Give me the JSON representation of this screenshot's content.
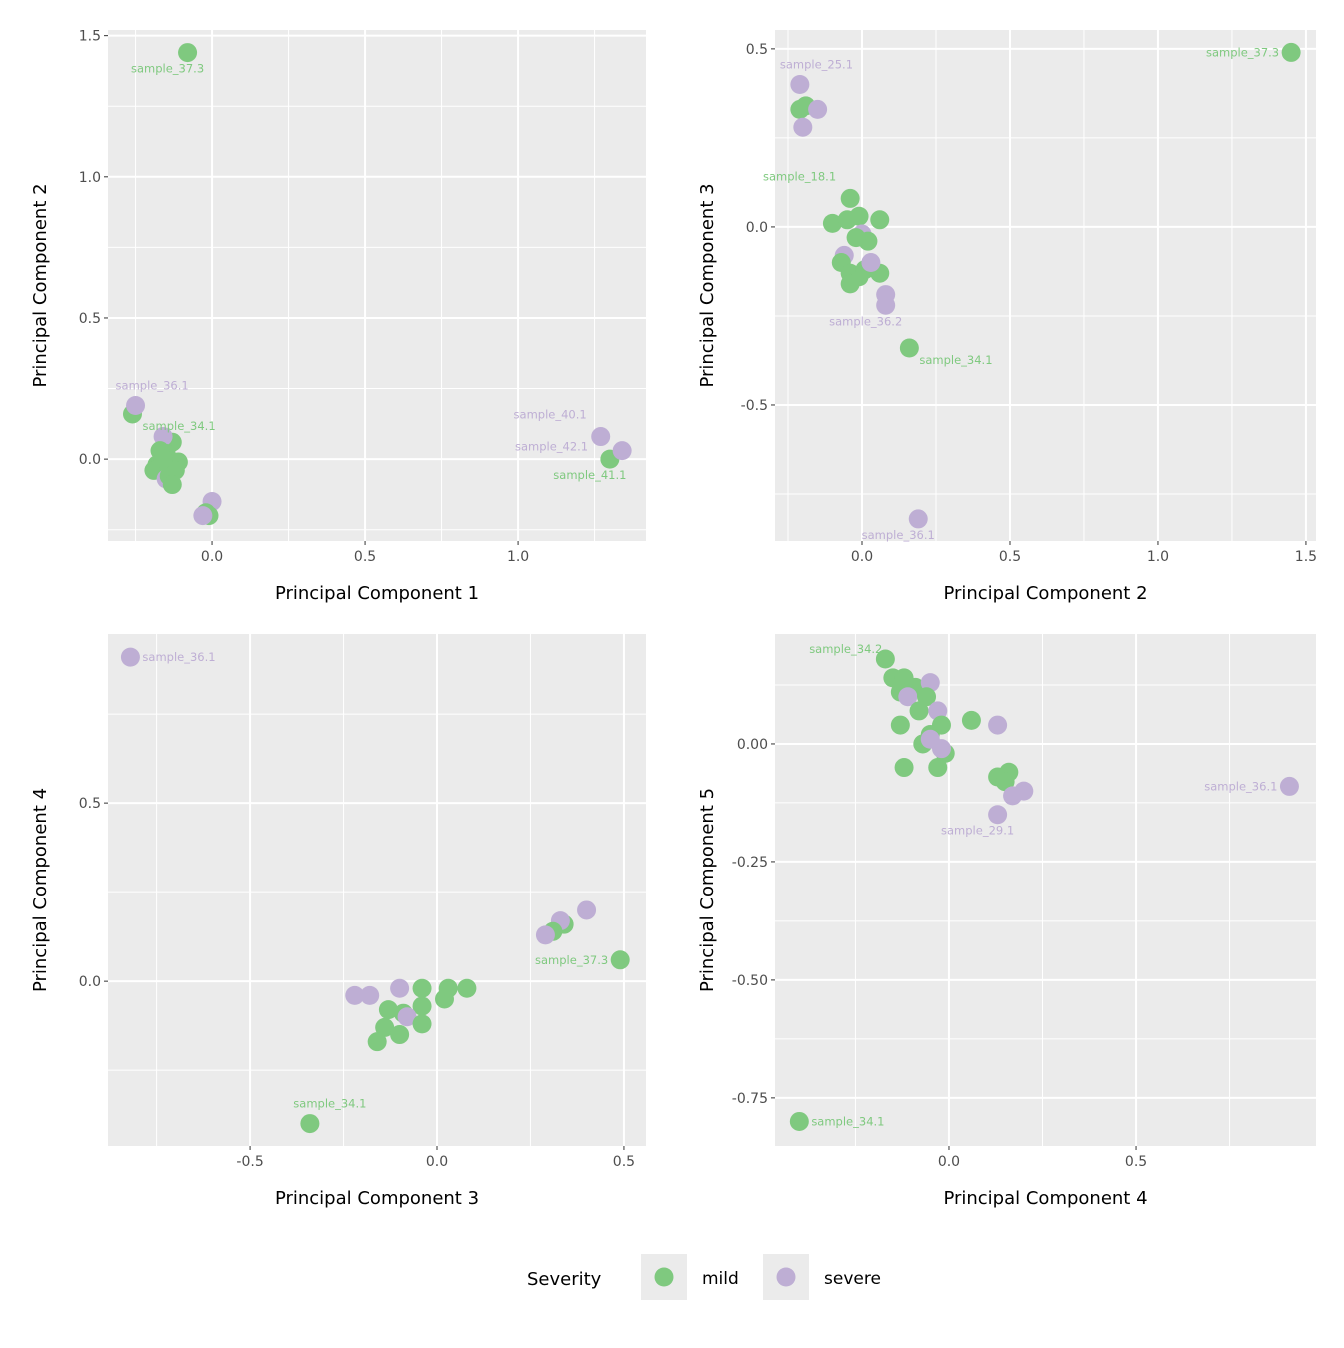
{
  "colors": {
    "mild": "#7FC97F",
    "severe": "#BEAED4",
    "panel_bg": "#EBEBEB",
    "grid": "#FFFFFF"
  },
  "legend": {
    "title": "Severity",
    "items": [
      {
        "key": "mild",
        "label": "mild"
      },
      {
        "key": "severe",
        "label": "severe"
      }
    ],
    "placement": "bottom"
  },
  "chart_data": [
    {
      "type": "scatter",
      "xlabel": "Principal Component 1",
      "ylabel": "Principal Component 2",
      "xlim": [
        -0.34,
        1.418
      ],
      "ylim": [
        -0.29,
        1.52
      ],
      "xticks": [
        {
          "v": 0,
          "t": "0.0"
        },
        {
          "v": 0.5,
          "t": "0.5"
        },
        {
          "v": 1.0,
          "t": "1.0"
        }
      ],
      "yticks": [
        {
          "v": 0,
          "t": "0.0"
        },
        {
          "v": 0.5,
          "t": "0.5"
        },
        {
          "v": 1.0,
          "t": "1.0"
        },
        {
          "v": 1.5,
          "t": "1.5"
        }
      ],
      "points": [
        {
          "x": -0.08,
          "y": 1.44,
          "s": "mild",
          "label": "sample_37.3",
          "pos": "below-left"
        },
        {
          "x": -0.26,
          "y": 0.16,
          "s": "mild",
          "label": "sample_34.1",
          "pos": "below-right"
        },
        {
          "x": -0.25,
          "y": 0.19,
          "s": "severe",
          "label": "sample_36.1",
          "pos": "above-right"
        },
        {
          "x": 1.3,
          "y": 0.0,
          "s": "mild",
          "label": "sample_41.1",
          "pos": "below-left"
        },
        {
          "x": 1.27,
          "y": 0.08,
          "s": "severe",
          "label": "sample_40.1",
          "pos": "above-left"
        },
        {
          "x": 1.34,
          "y": 0.03,
          "s": "severe",
          "label": "sample_42.1",
          "pos": "far-left"
        },
        {
          "x": -0.13,
          "y": 0.06,
          "s": "mild"
        },
        {
          "x": -0.16,
          "y": 0.08,
          "s": "severe"
        },
        {
          "x": -0.15,
          "y": 0.02,
          "s": "mild"
        },
        {
          "x": -0.17,
          "y": 0.03,
          "s": "mild"
        },
        {
          "x": -0.18,
          "y": -0.02,
          "s": "mild"
        },
        {
          "x": -0.19,
          "y": -0.04,
          "s": "mild"
        },
        {
          "x": -0.13,
          "y": -0.02,
          "s": "mild"
        },
        {
          "x": -0.11,
          "y": -0.01,
          "s": "mild"
        },
        {
          "x": -0.15,
          "y": -0.07,
          "s": "severe"
        },
        {
          "x": -0.12,
          "y": -0.04,
          "s": "mild"
        },
        {
          "x": -0.14,
          "y": -0.06,
          "s": "mild"
        },
        {
          "x": -0.13,
          "y": -0.09,
          "s": "mild"
        },
        {
          "x": -0.16,
          "y": 0.0,
          "s": "mild"
        },
        {
          "x": 0.0,
          "y": -0.15,
          "s": "severe"
        },
        {
          "x": -0.01,
          "y": -0.2,
          "s": "mild"
        },
        {
          "x": -0.02,
          "y": -0.19,
          "s": "mild"
        },
        {
          "x": -0.03,
          "y": -0.2,
          "s": "severe"
        }
      ]
    },
    {
      "type": "scatter",
      "xlabel": "Principal Component 2",
      "ylabel": "Principal Component 3",
      "xlim": [
        -0.294,
        1.534
      ],
      "ylim": [
        -0.882,
        0.553
      ],
      "xticks": [
        {
          "v": 0,
          "t": "0.0"
        },
        {
          "v": 0.5,
          "t": "0.5"
        },
        {
          "v": 1.0,
          "t": "1.0"
        },
        {
          "v": 1.5,
          "t": "1.5"
        }
      ],
      "yticks": [
        {
          "v": -0.5,
          "t": "-0.5"
        },
        {
          "v": 0,
          "t": "0.0"
        },
        {
          "v": 0.5,
          "t": "0.5"
        }
      ],
      "points": [
        {
          "x": 1.45,
          "y": 0.49,
          "s": "mild",
          "label": "sample_37.3",
          "pos": "left"
        },
        {
          "x": -0.21,
          "y": 0.4,
          "s": "severe",
          "label": "sample_25.1",
          "pos": "above-right"
        },
        {
          "x": -0.21,
          "y": 0.33,
          "s": "mild"
        },
        {
          "x": -0.19,
          "y": 0.34,
          "s": "mild"
        },
        {
          "x": -0.15,
          "y": 0.33,
          "s": "severe"
        },
        {
          "x": -0.2,
          "y": 0.28,
          "s": "severe"
        },
        {
          "x": -0.04,
          "y": 0.08,
          "s": "mild",
          "label": "sample_18.1",
          "pos": "above-left"
        },
        {
          "x": -0.1,
          "y": 0.01,
          "s": "mild"
        },
        {
          "x": -0.01,
          "y": 0.03,
          "s": "mild"
        },
        {
          "x": 0.06,
          "y": 0.02,
          "s": "mild"
        },
        {
          "x": -0.05,
          "y": 0.02,
          "s": "mild"
        },
        {
          "x": 0.0,
          "y": -0.02,
          "s": "severe"
        },
        {
          "x": 0.02,
          "y": -0.04,
          "s": "mild"
        },
        {
          "x": -0.02,
          "y": -0.03,
          "s": "mild"
        },
        {
          "x": -0.06,
          "y": -0.08,
          "s": "severe"
        },
        {
          "x": -0.07,
          "y": -0.1,
          "s": "mild"
        },
        {
          "x": -0.04,
          "y": -0.13,
          "s": "mild"
        },
        {
          "x": -0.01,
          "y": -0.14,
          "s": "mild"
        },
        {
          "x": 0.06,
          "y": -0.13,
          "s": "mild"
        },
        {
          "x": -0.04,
          "y": -0.16,
          "s": "mild"
        },
        {
          "x": 0.01,
          "y": -0.12,
          "s": "mild"
        },
        {
          "x": 0.03,
          "y": -0.1,
          "s": "severe"
        },
        {
          "x": 0.08,
          "y": -0.19,
          "s": "severe"
        },
        {
          "x": 0.08,
          "y": -0.22,
          "s": "severe",
          "label": "sample_36.2",
          "pos": "below-left"
        },
        {
          "x": 0.16,
          "y": -0.34,
          "s": "mild",
          "label": "sample_34.1",
          "pos": "below-right"
        },
        {
          "x": 0.19,
          "y": -0.82,
          "s": "severe",
          "label": "sample_36.1",
          "pos": "below-left"
        }
      ]
    },
    {
      "type": "scatter",
      "xlabel": "Principal Component 3",
      "ylabel": "Principal Component 4",
      "xlim": [
        -0.88,
        0.559
      ],
      "ylim": [
        -0.463,
        0.975
      ],
      "xticks": [
        {
          "v": -0.5,
          "t": "-0.5"
        },
        {
          "v": 0,
          "t": "0.0"
        },
        {
          "v": 0.5,
          "t": "0.5"
        }
      ],
      "yticks": [
        {
          "v": 0,
          "t": "0.0"
        },
        {
          "v": 0.5,
          "t": "0.5"
        }
      ],
      "points": [
        {
          "x": -0.82,
          "y": 0.91,
          "s": "severe",
          "label": "sample_36.1",
          "pos": "right"
        },
        {
          "x": 0.4,
          "y": 0.2,
          "s": "severe"
        },
        {
          "x": 0.34,
          "y": 0.16,
          "s": "mild"
        },
        {
          "x": 0.33,
          "y": 0.17,
          "s": "severe"
        },
        {
          "x": 0.31,
          "y": 0.14,
          "s": "mild"
        },
        {
          "x": 0.29,
          "y": 0.13,
          "s": "severe"
        },
        {
          "x": 0.49,
          "y": 0.06,
          "s": "mild",
          "label": "sample_37.3",
          "pos": "left"
        },
        {
          "x": -0.22,
          "y": -0.04,
          "s": "severe"
        },
        {
          "x": -0.18,
          "y": -0.04,
          "s": "severe"
        },
        {
          "x": -0.1,
          "y": -0.02,
          "s": "severe"
        },
        {
          "x": -0.04,
          "y": -0.02,
          "s": "mild"
        },
        {
          "x": 0.03,
          "y": -0.02,
          "s": "mild"
        },
        {
          "x": 0.08,
          "y": -0.02,
          "s": "mild"
        },
        {
          "x": 0.02,
          "y": -0.05,
          "s": "mild"
        },
        {
          "x": -0.04,
          "y": -0.07,
          "s": "mild"
        },
        {
          "x": -0.13,
          "y": -0.08,
          "s": "mild"
        },
        {
          "x": -0.09,
          "y": -0.09,
          "s": "mild"
        },
        {
          "x": -0.08,
          "y": -0.1,
          "s": "severe"
        },
        {
          "x": -0.14,
          "y": -0.13,
          "s": "mild"
        },
        {
          "x": -0.1,
          "y": -0.15,
          "s": "mild"
        },
        {
          "x": -0.16,
          "y": -0.17,
          "s": "mild"
        },
        {
          "x": -0.04,
          "y": -0.12,
          "s": "mild"
        },
        {
          "x": -0.34,
          "y": -0.4,
          "s": "mild",
          "label": "sample_34.1",
          "pos": "above"
        }
      ]
    },
    {
      "type": "scatter",
      "xlabel": "Principal Component 4",
      "ylabel": "Principal Component 5",
      "xlim": [
        -0.465,
        0.981
      ],
      "ylim": [
        -0.852,
        0.233
      ],
      "xticks": [
        {
          "v": 0,
          "t": "0.0"
        },
        {
          "v": 0.5,
          "t": "0.5"
        }
      ],
      "yticks": [
        {
          "v": -0.75,
          "t": "-0.75"
        },
        {
          "v": -0.5,
          "t": "-0.50"
        },
        {
          "v": -0.25,
          "t": "-0.25"
        },
        {
          "v": 0,
          "t": "0.00"
        }
      ],
      "points": [
        {
          "x": -0.17,
          "y": 0.18,
          "s": "mild",
          "label": "sample_34.2",
          "pos": "left-above"
        },
        {
          "x": -0.15,
          "y": 0.14,
          "s": "mild"
        },
        {
          "x": -0.12,
          "y": 0.14,
          "s": "mild"
        },
        {
          "x": -0.09,
          "y": 0.12,
          "s": "mild"
        },
        {
          "x": -0.13,
          "y": 0.11,
          "s": "mild"
        },
        {
          "x": -0.05,
          "y": 0.13,
          "s": "severe"
        },
        {
          "x": -0.11,
          "y": 0.1,
          "s": "severe"
        },
        {
          "x": -0.06,
          "y": 0.1,
          "s": "mild"
        },
        {
          "x": -0.08,
          "y": 0.07,
          "s": "mild"
        },
        {
          "x": -0.03,
          "y": 0.07,
          "s": "severe"
        },
        {
          "x": -0.02,
          "y": 0.04,
          "s": "mild"
        },
        {
          "x": -0.13,
          "y": 0.04,
          "s": "mild"
        },
        {
          "x": 0.06,
          "y": 0.05,
          "s": "mild"
        },
        {
          "x": 0.13,
          "y": 0.04,
          "s": "severe"
        },
        {
          "x": -0.07,
          "y": 0.0,
          "s": "mild"
        },
        {
          "x": -0.05,
          "y": 0.02,
          "s": "mild"
        },
        {
          "x": -0.05,
          "y": 0.01,
          "s": "severe"
        },
        {
          "x": -0.01,
          "y": -0.02,
          "s": "mild"
        },
        {
          "x": -0.02,
          "y": -0.01,
          "s": "severe"
        },
        {
          "x": -0.03,
          "y": -0.05,
          "s": "mild"
        },
        {
          "x": -0.12,
          "y": -0.05,
          "s": "mild"
        },
        {
          "x": 0.13,
          "y": -0.07,
          "s": "mild"
        },
        {
          "x": 0.16,
          "y": -0.06,
          "s": "mild"
        },
        {
          "x": 0.15,
          "y": -0.08,
          "s": "mild"
        },
        {
          "x": 0.17,
          "y": -0.11,
          "s": "severe"
        },
        {
          "x": 0.2,
          "y": -0.1,
          "s": "severe"
        },
        {
          "x": 0.13,
          "y": -0.15,
          "s": "severe",
          "label": "sample_29.1",
          "pos": "below-left"
        },
        {
          "x": 0.91,
          "y": -0.09,
          "s": "severe",
          "label": "sample_36.1",
          "pos": "left"
        },
        {
          "x": -0.4,
          "y": -0.8,
          "s": "mild",
          "label": "sample_34.1",
          "pos": "right"
        }
      ]
    }
  ]
}
